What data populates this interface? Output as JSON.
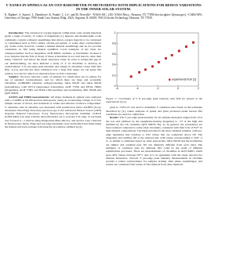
{
  "header": {
    "title": "V XANES IN SPINELS AS AN OXY-BAROMETER IN METEORITES WITH IMPLICATIONS FOR REDOX VARIATIONS IN THE INNER SOLAR SYSTEM.",
    "authors": "K. Righter¹, S. Sutton², L. Danielson³, K. Pando³, L. Le³, and M. Newville². ¹NASA-JSC, 2101 NASA Pkwy., Houston, TX 77058 (kevin.righter-1@nasa.gov), ²CARS/APS, University of Chicago, 9700 South Cass Avenue, Bldg. 434A, Argonne, IL 60439, ³ESCG/Jacobs Technology, Houston, TX 77058."
  },
  "left": [
    {
      "heading": "Introduction:",
      "text": "The variation of oxygen fugacity within inner solar system materials spans a range of nearly 15 orders of magnitude [1]. Igneous and metamorphic rocks commonly contain a mineral assemblage that allows oxygen fugacity to be calculated or constrained such as FeTi oxides, olivine-opx-spinel, or some other oxybarometer [2]. Some rocks, however, contain a limited mineral assemblage and do not provide constraints on fO2 using mineral equilibria. Good examples of the latter are orthopyroxenites, such as diogenites, ALH 84001, ureilites, or brachinites. In these it is no surprise that the fO2 of many of these achondrites is not well known, other than being \"reduced\" and below the metal saturation value. In order to bridge this gap in our understanding, we have initiated a study of V in chromites to develop an oxybarometer. V K pre-edge peak intensity and energy in chromites varies with fO2 (Fig. 1) [2], and this has been calibrated over a large fO2 range; we can apply this relation to rocks for which we otherwise have no fO2 constraints."
    },
    {
      "heading": "Samples:",
      "text": "We have selected a suite of samples for which there are no phases for use of standard oxybarometers, and for which there are large and accessible chromites: ALH84001 (martian orthopyroxenite), GRA 06128 and GRA 06129 (achondrites), LAP 03719 (ungrouped achondrite), ALH 77256 and EETA 79002 (diogenites), ALH 77081 and NWA 1500 (ureilites and brachinites), MIL 03346 and QUE 99679."
    },
    {
      "heading": "XANES and EMPA measurements:",
      "text": "All major elements in spinels were analyzed with a CAMECA SX100 electron microprobe, using an accelerating voltage of 15 kV, sample current of 20 nA, and standards of oxides and silicates of known composition. V oxidation state in chromite was measured with synchrotron micro-XANES (X-ray absorption Near-Edge Structure) spectroscopy at the Advanced Photon Source (APS) Argonne National Laboratory. X-ray fluorescence microprobe beamline 13-ID-E (GSECARS) was used with the monochromator set to scan the V K edge. X-ray beam was focused to ~1 micron using Kirkpatrick-Baez mirrors, and spectra were collected in fluorescence mode. Edge and pre-edge intensities were normalized and fitted using the Athena software package following the procedures outlined in [2]."
    }
  ],
  "figure": {
    "legend": "experiments from [2]",
    "x": [
      -4.6,
      -3.8,
      -3.2,
      -2.5,
      -1.9,
      -1.2,
      -0.6,
      0.1,
      0.8,
      1.5
    ],
    "y": [
      0.18,
      0.26,
      0.31,
      0.37,
      0.45,
      0.52,
      0.58,
      0.66,
      0.74,
      0.82
    ],
    "xlim": [
      -6,
      2
    ],
    "ylim": [
      0,
      1
    ],
    "xticks": [
      -6,
      -4,
      -2,
      0,
      2
    ],
    "yticks": [
      0,
      0.2,
      0.4,
      0.6,
      0.8,
      1
    ],
    "color": "#d62020",
    "caption": "Figure 1: Correlation of V K pre-edge peak intensity with ΔIW for spinels in the experiments of [2]."
  },
  "right": [
    {
      "heading": "",
      "text": "peak at ~5470 eV was used to determine V oxidation state based on the technique described by [2], where analyses of spinel and glass produced under known fO2 conditions are used for calibration."
    },
    {
      "heading": "Results:",
      "text": "The V pre-edge peak intensity for all samples measured ranges from 10 at the low end (defined by the sapphirine-bearing diogenite) to ~75 at the high end (defined by the CK chondrite QUE 99679; Fig. 2). In general, the achondrites are more reduced compared to some other chromites, consistent with their lack of Fe3+ in their mineral compositions. The high end reflects the most oxidized samples, with pre-edge intensities that translate to fO2 values that are somewhat above IW. The diogenites and ureilites fall at the reduced end, with values corresponding to ΔIW -2 to -4, similar to estimates based on other approaches. GRA 06128 and the brachinites are similar and oxidized near IW, but distinctly different from each other. The summary of oxidation state for different fO2 could be the result of different equilibration processes. There are measurements of chromites in ALH 84001 which span ΔIW values between IW+1 and -0.5, in agreement with the range reported for martian meteorites. Overall, V pre-edge peak intensity measurements in chromite provide a robust oxybarometer for samples lacking other phase assemblages, and results are consistent with values of fO2 inferred from other methods."
    }
  ]
}
